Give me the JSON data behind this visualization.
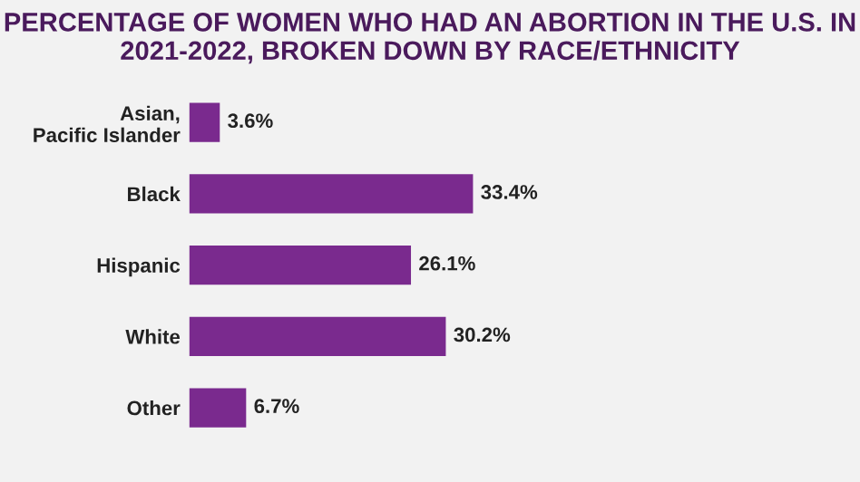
{
  "chart_data": {
    "type": "bar",
    "orientation": "horizontal",
    "title": "PERCENTAGE OF WOMEN WHO HAD AN ABORTION IN THE U.S. IN 2021-2022, BROKEN DOWN BY RACE/ETHNICITY",
    "categories": [
      "Asian,\nPacific Islander",
      "Black",
      "Hispanic",
      "White",
      "Other"
    ],
    "values": [
      3.6,
      33.4,
      26.1,
      30.2,
      6.7
    ],
    "value_labels": [
      "3.6%",
      "33.4%",
      "26.1%",
      "30.2%",
      "6.7%"
    ],
    "color": "#7a2a8e",
    "grid": false,
    "legend": false
  }
}
